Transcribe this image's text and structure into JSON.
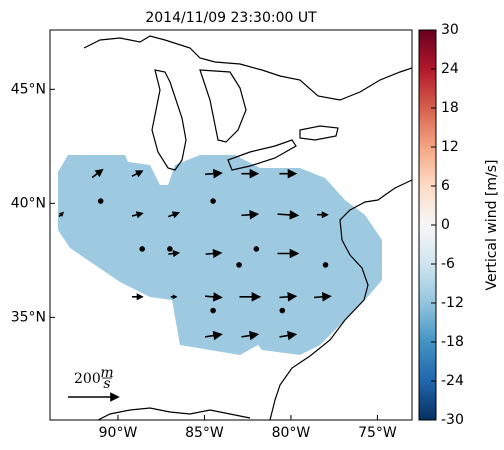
{
  "chart_data": {
    "type": "quiver",
    "title": "2014/11/09 23:30:00 UT",
    "xlim": [
      -93.93,
      -73.0
    ],
    "ylim": [
      30.5,
      47.6
    ],
    "xticks": [
      {
        "value": -90,
        "label": "90°W"
      },
      {
        "value": -85,
        "label": "85°W"
      },
      {
        "value": -80,
        "label": "80°W"
      },
      {
        "value": -75,
        "label": "75°W"
      }
    ],
    "yticks": [
      {
        "value": 45,
        "label": "45°N"
      },
      {
        "value": 40,
        "label": "40°N"
      },
      {
        "value": 35,
        "label": "35°N"
      }
    ],
    "field_color": "#9ecae1",
    "arrow_color": "#000000",
    "arrows": {
      "lon": [
        -91.2,
        -88.9,
        -84.5,
        -82.4,
        -80.2,
        -93.3,
        -91.0,
        -88.9,
        -86.8,
        -84.5,
        -82.4,
        -80.2,
        -78.2,
        -88.6,
        -87.0,
        -84.5,
        -83.0,
        -82.0,
        -80.2,
        -78.0,
        -86.8,
        -84.5,
        -82.4,
        -80.2,
        -78.2,
        -84.5,
        -80.5,
        -84.5,
        -82.4,
        -80.2,
        -88.9,
        -86.8
      ],
      "lat": [
        41.3,
        41.3,
        41.3,
        41.3,
        41.3,
        39.5,
        40.1,
        39.5,
        39.5,
        40.1,
        39.5,
        39.5,
        39.5,
        38.0,
        38.0,
        37.8,
        37.3,
        38.0,
        37.8,
        37.3,
        37.8,
        35.9,
        35.9,
        35.9,
        35.9,
        35.3,
        35.3,
        34.2,
        34.2,
        34.2,
        35.9,
        35.9
      ],
      "u": [
        40,
        40,
        64,
        64,
        64,
        15,
        0,
        40,
        40,
        0,
        64,
        80,
        40,
        0,
        0,
        60,
        0,
        0,
        80,
        0,
        40,
        64,
        80,
        64,
        64,
        0,
        0,
        64,
        64,
        64,
        40,
        20
      ],
      "v": [
        30,
        20,
        5,
        0,
        0,
        15,
        0,
        10,
        15,
        0,
        5,
        -5,
        0,
        0,
        0,
        5,
        0,
        0,
        0,
        0,
        5,
        -5,
        0,
        5,
        5,
        0,
        0,
        10,
        10,
        10,
        0,
        0
      ]
    },
    "key": {
      "value": 200,
      "unit_num": "m",
      "unit_den": "s"
    },
    "colorbar": {
      "label": "Vertical wind [m/s]",
      "lim": [
        -30,
        30
      ],
      "ticks": [
        -30,
        -24,
        -18,
        -12,
        -6,
        0,
        6,
        12,
        18,
        24,
        30
      ]
    }
  }
}
